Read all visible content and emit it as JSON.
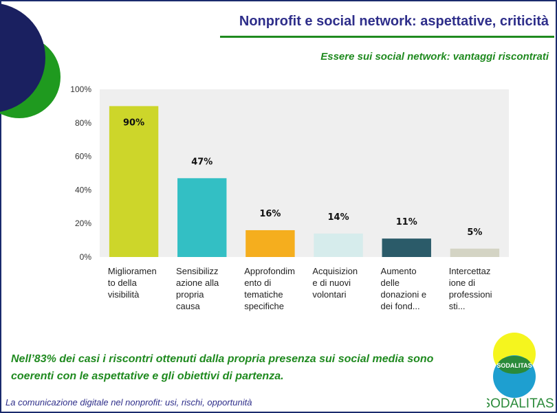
{
  "slide": {
    "title": "Nonprofit e social network: aspettative, criticità",
    "subtitle": "Essere sui social network: vantaggi riscontrati",
    "conclusion": "Nell’83% dei casi i riscontri ottenuti dalla propria presenza sui social media sono coerenti con le aspettative e gli obiettivi di partenza.",
    "footer": "La comunicazione digitale nel nonprofit: usi, rischi, opportunità"
  },
  "logo": {
    "badge_text": "SODALITAS",
    "wordmark": "SODALITAS",
    "colors": {
      "top": "#f5f51e",
      "middle": "#2a8a3a",
      "bottom": "#1e9fd0",
      "wordmark": "#2a8a3a"
    }
  },
  "colors": {
    "accent_navy": "#1a2060",
    "accent_green": "#1f9a1f",
    "title": "#2e2e8a",
    "plot_bg": "#efefef"
  },
  "chart_data": {
    "type": "bar",
    "categories": [
      "Miglioramen to della visibilità",
      "Sensibilizz azione alla propria causa",
      "Approfondim ento di tematiche specifiche",
      "Acquisizion e di nuovi volontari",
      "Aumento delle donazioni e dei fond...",
      "Intercettaz ione di professioni sti..."
    ],
    "category_lines": [
      [
        "Miglioramen",
        "to della",
        "visibilità"
      ],
      [
        "Sensibilizz",
        "azione alla",
        "propria",
        "causa"
      ],
      [
        "Approfondim",
        "ento di",
        "tematiche",
        "specifiche"
      ],
      [
        "Acquisizion",
        "e di nuovi",
        "volontari"
      ],
      [
        "Aumento",
        "delle",
        "donazioni e",
        "dei fond..."
      ],
      [
        "Intercettaz",
        "ione di",
        "professioni",
        "sti..."
      ]
    ],
    "values": [
      90,
      47,
      16,
      14,
      11,
      5
    ],
    "value_labels": [
      "90%",
      "47%",
      "16%",
      "14%",
      "11%",
      "5%"
    ],
    "bar_colors": [
      "#cdd62a",
      "#33bfc4",
      "#f5ae1e",
      "#d6ecec",
      "#2b5b69",
      "#d4d4c4"
    ],
    "ylim": [
      0,
      100
    ],
    "yticks": [
      0,
      20,
      40,
      60,
      80,
      100
    ],
    "ytick_labels": [
      "0%",
      "20%",
      "40%",
      "60%",
      "80%",
      "100%"
    ],
    "grid": false
  }
}
